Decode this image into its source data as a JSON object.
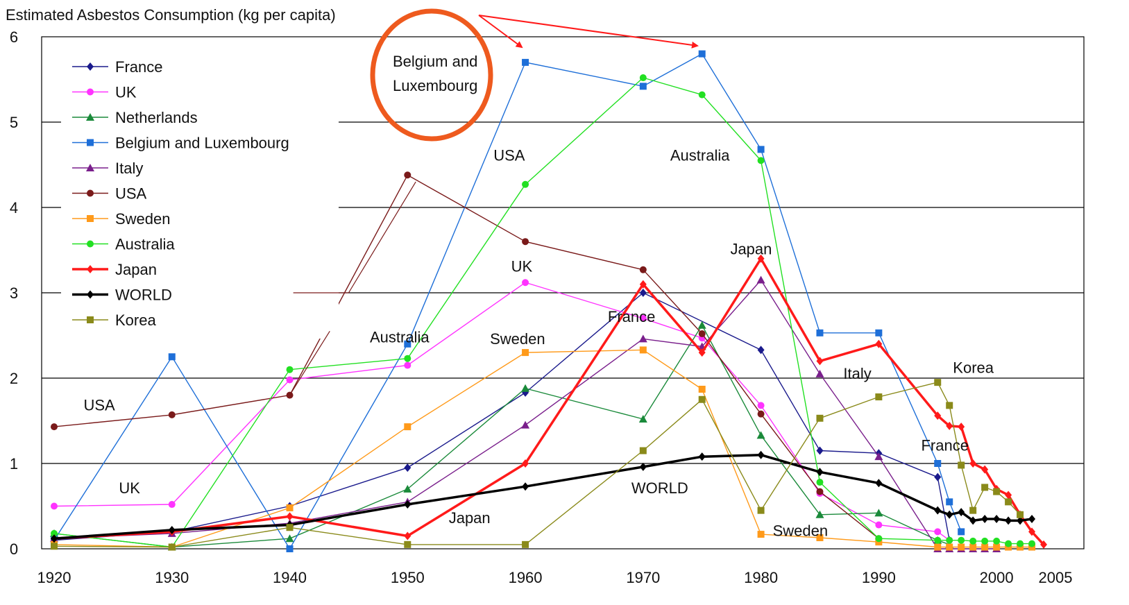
{
  "chart_data": {
    "type": "line",
    "title": "Estimated Asbestos Consumption (kg per capita)",
    "xlabel": "",
    "ylabel": "",
    "xlim": [
      1917,
      2005
    ],
    "ylim": [
      0,
      6
    ],
    "x_ticks": [
      1920,
      1930,
      1940,
      1950,
      1960,
      1970,
      1980,
      1990,
      2000,
      2005
    ],
    "y_ticks": [
      0,
      1,
      2,
      3,
      4,
      5,
      6
    ],
    "grid": "horizontal lines at 1-6",
    "legend": "top-left",
    "series": [
      {
        "name": "France",
        "color": "#1a1a8c",
        "marker": "diamond",
        "x": [
          1920,
          1930,
          1940,
          1950,
          1960,
          1970,
          1980,
          1985,
          1990,
          1995,
          1996
        ],
        "y": [
          0.1,
          0.2,
          0.5,
          0.95,
          1.83,
          3.0,
          2.33,
          1.15,
          1.12,
          0.84,
          0.1
        ]
      },
      {
        "name": "UK",
        "color": "#ff33ff",
        "marker": "circle",
        "x": [
          1920,
          1930,
          1940,
          1950,
          1960,
          1970,
          1975,
          1980,
          1985,
          1990,
          1995,
          1996
        ],
        "y": [
          0.5,
          0.52,
          1.98,
          2.15,
          3.12,
          2.7,
          2.47,
          1.68,
          0.65,
          0.28,
          0.2,
          0.1
        ]
      },
      {
        "name": "Netherlands",
        "color": "#1a8a3a",
        "marker": "triangle",
        "x": [
          1920,
          1930,
          1940,
          1950,
          1960,
          1970,
          1975,
          1980,
          1985,
          1990,
          1995,
          1996
        ],
        "y": [
          0.18,
          0.02,
          0.12,
          0.7,
          1.88,
          1.52,
          2.62,
          1.33,
          0.4,
          0.42,
          0.1,
          0.05
        ]
      },
      {
        "name": "Belgium and Luxembourg",
        "color": "#1e6fd8",
        "marker": "square",
        "x": [
          1920,
          1930,
          1940,
          1950,
          1960,
          1970,
          1975,
          1980,
          1985,
          1990,
          1995,
          1996,
          1997
        ],
        "y": [
          0.1,
          2.25,
          0.0,
          2.4,
          5.7,
          5.42,
          5.8,
          4.68,
          2.53,
          2.53,
          1.0,
          0.55,
          0.2
        ]
      },
      {
        "name": "Italy",
        "color": "#7a1f8c",
        "marker": "triangle",
        "x": [
          1920,
          1930,
          1940,
          1950,
          1960,
          1970,
          1975,
          1980,
          1985,
          1990,
          1995,
          1996,
          1997,
          1998,
          1999,
          2000
        ],
        "y": [
          0.12,
          0.18,
          0.3,
          0.55,
          1.45,
          2.46,
          2.37,
          3.15,
          2.05,
          1.08,
          0.0,
          0.0,
          0.0,
          0.0,
          0.0,
          0.0
        ]
      },
      {
        "name": "USA",
        "color": "#7a1a1a",
        "marker": "circle",
        "x": [
          1920,
          1930,
          1940,
          1950,
          1960,
          1970,
          1975,
          1980,
          1985,
          1990
        ],
        "y": [
          1.43,
          1.57,
          1.8,
          4.38,
          3.6,
          3.27,
          2.52,
          1.58,
          0.67,
          0.12
        ]
      },
      {
        "name": "Sweden",
        "color": "#ff9a1a",
        "marker": "square",
        "x": [
          1920,
          1930,
          1940,
          1950,
          1960,
          1970,
          1975,
          1980,
          1985,
          1990,
          1995,
          1996,
          1997,
          1998,
          1999,
          2000,
          2001,
          2002,
          2003
        ],
        "y": [
          0.05,
          0.02,
          0.48,
          1.43,
          2.3,
          2.33,
          1.87,
          0.17,
          0.13,
          0.08,
          0.02,
          0.02,
          0.02,
          0.02,
          0.02,
          0.02,
          0.02,
          0.02,
          0.02
        ]
      },
      {
        "name": "Australia",
        "color": "#22e022",
        "marker": "circle",
        "x": [
          1920,
          1930,
          1940,
          1950,
          1960,
          1970,
          1975,
          1980,
          1985,
          1990,
          1995,
          1996,
          1997,
          1998,
          1999,
          2000,
          2001,
          2002,
          2003
        ],
        "y": [
          0.18,
          0.02,
          2.1,
          2.23,
          4.27,
          5.52,
          5.32,
          4.55,
          0.78,
          0.12,
          0.1,
          0.1,
          0.1,
          0.09,
          0.09,
          0.09,
          0.06,
          0.06,
          0.06
        ]
      },
      {
        "name": "Japan",
        "color": "#ff1a1a",
        "marker": "diamond",
        "x": [
          1920,
          1930,
          1940,
          1950,
          1960,
          1970,
          1975,
          1980,
          1985,
          1990,
          1995,
          1996,
          1997,
          1998,
          1999,
          2000,
          2001,
          2002,
          2003,
          2004
        ],
        "y": [
          0.12,
          0.2,
          0.38,
          0.15,
          1.0,
          3.1,
          2.3,
          3.4,
          2.2,
          2.4,
          1.56,
          1.44,
          1.43,
          1.0,
          0.93,
          0.7,
          0.63,
          0.4,
          0.2,
          0.05
        ]
      },
      {
        "name": "WORLD",
        "color": "#000000",
        "marker": "diamond",
        "x": [
          1920,
          1930,
          1940,
          1950,
          1960,
          1970,
          1975,
          1980,
          1985,
          1990,
          1995,
          1996,
          1997,
          1998,
          1999,
          2000,
          2001,
          2002,
          2003
        ],
        "y": [
          0.12,
          0.22,
          0.28,
          0.52,
          0.73,
          0.96,
          1.08,
          1.1,
          0.9,
          0.77,
          0.45,
          0.4,
          0.43,
          0.33,
          0.35,
          0.35,
          0.33,
          0.33,
          0.35
        ]
      },
      {
        "name": "Korea",
        "color": "#8a8a1a",
        "marker": "square",
        "x": [
          1920,
          1930,
          1940,
          1950,
          1960,
          1970,
          1975,
          1980,
          1985,
          1990,
          1995,
          1996,
          1997,
          1998,
          1999,
          2000,
          2001,
          2002
        ],
        "y": [
          0.03,
          0.02,
          0.25,
          0.05,
          0.05,
          1.15,
          1.75,
          0.45,
          1.53,
          1.78,
          1.95,
          1.68,
          0.98,
          0.45,
          0.72,
          0.67,
          0.55,
          0.4
        ]
      }
    ],
    "annotations": [
      {
        "text": "USA",
        "x": 1922.5,
        "y": 1.62
      },
      {
        "text": "UK",
        "x": 1925.5,
        "y": 0.65
      },
      {
        "text": "Australia",
        "x": 1946.8,
        "y": 2.42
      },
      {
        "text": "USA",
        "x": 1957.3,
        "y": 4.55
      },
      {
        "text": "Australia",
        "x": 1972.3,
        "y": 4.55
      },
      {
        "text": "UK",
        "x": 1958.8,
        "y": 3.25
      },
      {
        "text": "France",
        "x": 1967.0,
        "y": 2.66
      },
      {
        "text": "Sweden",
        "x": 1957.0,
        "y": 2.4
      },
      {
        "text": "Japan",
        "x": 1977.4,
        "y": 3.45
      },
      {
        "text": "Italy",
        "x": 1987.0,
        "y": 1.99
      },
      {
        "text": "Korea",
        "x": 1996.3,
        "y": 2.06
      },
      {
        "text": "France",
        "x": 1993.6,
        "y": 1.15
      },
      {
        "text": "WORLD",
        "x": 1969.0,
        "y": 0.65
      },
      {
        "text": "Japan",
        "x": 1953.5,
        "y": 0.3
      },
      {
        "text": "Sweden",
        "x": 1981.0,
        "y": 0.15
      }
    ],
    "callout": {
      "text": [
        "Belgium and",
        "Luxembourg"
      ]
    }
  }
}
